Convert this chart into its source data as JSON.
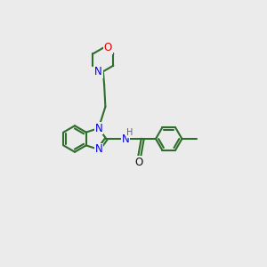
{
  "bg_color": "#ebebeb",
  "bond_color": "#2d6e2d",
  "n_color": "#0000ee",
  "o_color": "#dd0000",
  "lw": 1.5,
  "dbo": 0.06,
  "figsize": [
    3.0,
    3.0
  ],
  "dpi": 100,
  "xlim": [
    0,
    10
  ],
  "ylim": [
    0,
    10
  ]
}
